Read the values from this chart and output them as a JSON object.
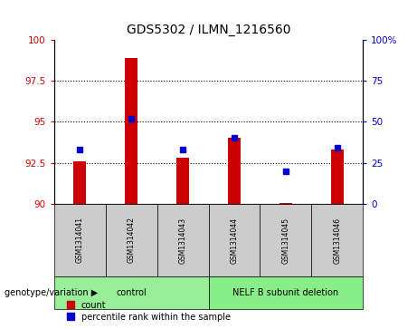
{
  "title": "GDS5302 / ILMN_1216560",
  "samples": [
    "GSM1314041",
    "GSM1314042",
    "GSM1314043",
    "GSM1314044",
    "GSM1314045",
    "GSM1314046"
  ],
  "counts": [
    92.6,
    98.9,
    92.8,
    94.0,
    90.05,
    93.3
  ],
  "percentile_ranks": [
    33,
    52,
    33,
    40,
    20,
    34
  ],
  "ylim_left": [
    90,
    100
  ],
  "yticks_left": [
    90,
    92.5,
    95,
    97.5,
    100
  ],
  "ylim_right": [
    0,
    100
  ],
  "yticks_right": [
    0,
    25,
    50,
    75,
    100
  ],
  "ytick_labels_right": [
    "0",
    "25",
    "50",
    "75",
    "100%"
  ],
  "color_count": "#cc0000",
  "color_percentile": "#0000cc",
  "color_control_bg": "#99ee99",
  "color_deletion_bg": "#88ee88",
  "color_sample_bg": "#cccccc",
  "hline_values": [
    92.5,
    95,
    97.5
  ],
  "group_label": "genotype/variation",
  "groups": [
    {
      "label": "control",
      "start": 0,
      "end": 2
    },
    {
      "label": "NELF B subunit deletion",
      "start": 3,
      "end": 5
    }
  ]
}
